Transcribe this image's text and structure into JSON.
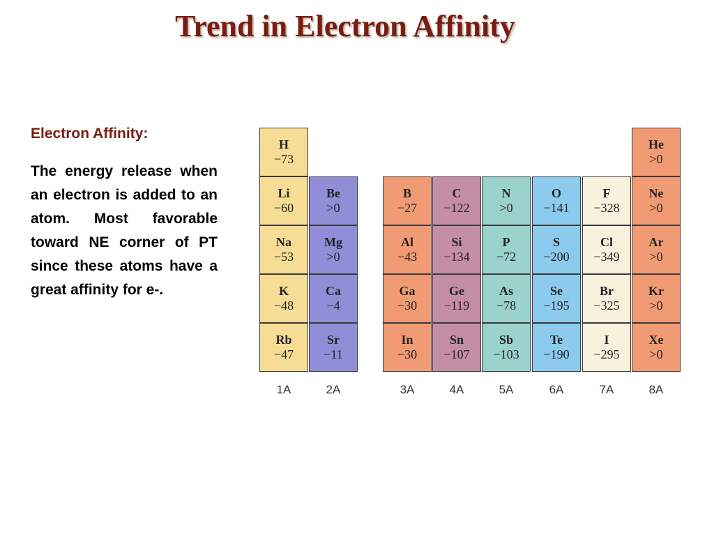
{
  "title": "Trend in Electron Affinity",
  "definition": {
    "heading": "Electron Affinity:",
    "body": "The energy release when an electron is added to an atom. Most favorable toward NE corner of PT since these atoms have a great affinity for e-."
  },
  "colors": {
    "group1A": "#f6dc94",
    "group2A": "#8f8ed6",
    "group3A": "#f19b74",
    "group4A": "#c48ea4",
    "group5A": "#9bd2ce",
    "group6A": "#8ccbee",
    "group7A": "#f7f1dd",
    "group8A": "#f19b74"
  },
  "groups": [
    "1A",
    "2A",
    "3A",
    "4A",
    "5A",
    "6A",
    "7A",
    "8A"
  ],
  "elements": [
    {
      "symbol": "H",
      "value": "−73",
      "group": 0,
      "period": 1
    },
    {
      "symbol": "Li",
      "value": "−60",
      "group": 0,
      "period": 2
    },
    {
      "symbol": "Na",
      "value": "−53",
      "group": 0,
      "period": 3
    },
    {
      "symbol": "K",
      "value": "−48",
      "group": 0,
      "period": 4
    },
    {
      "symbol": "Rb",
      "value": "−47",
      "group": 0,
      "period": 5
    },
    {
      "symbol": "Be",
      "value": ">0",
      "group": 1,
      "period": 2
    },
    {
      "symbol": "Mg",
      "value": ">0",
      "group": 1,
      "period": 3
    },
    {
      "symbol": "Ca",
      "value": "−4",
      "group": 1,
      "period": 4
    },
    {
      "symbol": "Sr",
      "value": "−11",
      "group": 1,
      "period": 5
    },
    {
      "symbol": "B",
      "value": "−27",
      "group": 2,
      "period": 2
    },
    {
      "symbol": "Al",
      "value": "−43",
      "group": 2,
      "period": 3
    },
    {
      "symbol": "Ga",
      "value": "−30",
      "group": 2,
      "period": 4
    },
    {
      "symbol": "In",
      "value": "−30",
      "group": 2,
      "period": 5
    },
    {
      "symbol": "C",
      "value": "−122",
      "group": 3,
      "period": 2
    },
    {
      "symbol": "Si",
      "value": "−134",
      "group": 3,
      "period": 3
    },
    {
      "symbol": "Ge",
      "value": "−119",
      "group": 3,
      "period": 4
    },
    {
      "symbol": "Sn",
      "value": "−107",
      "group": 3,
      "period": 5
    },
    {
      "symbol": "N",
      "value": ">0",
      "group": 4,
      "period": 2
    },
    {
      "symbol": "P",
      "value": "−72",
      "group": 4,
      "period": 3
    },
    {
      "symbol": "As",
      "value": "−78",
      "group": 4,
      "period": 4
    },
    {
      "symbol": "Sb",
      "value": "−103",
      "group": 4,
      "period": 5
    },
    {
      "symbol": "O",
      "value": "−141",
      "group": 5,
      "period": 2
    },
    {
      "symbol": "S",
      "value": "−200",
      "group": 5,
      "period": 3
    },
    {
      "symbol": "Se",
      "value": "−195",
      "group": 5,
      "period": 4
    },
    {
      "symbol": "Te",
      "value": "−190",
      "group": 5,
      "period": 5
    },
    {
      "symbol": "F",
      "value": "−328",
      "group": 6,
      "period": 2
    },
    {
      "symbol": "Cl",
      "value": "−349",
      "group": 6,
      "period": 3
    },
    {
      "symbol": "Br",
      "value": "−325",
      "group": 6,
      "period": 4
    },
    {
      "symbol": "I",
      "value": "−295",
      "group": 6,
      "period": 5
    },
    {
      "symbol": "He",
      "value": ">0",
      "group": 7,
      "period": 1
    },
    {
      "symbol": "Ne",
      "value": ">0",
      "group": 7,
      "period": 2
    },
    {
      "symbol": "Ar",
      "value": ">0",
      "group": 7,
      "period": 3
    },
    {
      "symbol": "Kr",
      "value": ">0",
      "group": 7,
      "period": 4
    },
    {
      "symbol": "Xe",
      "value": ">0",
      "group": 7,
      "period": 5
    }
  ]
}
